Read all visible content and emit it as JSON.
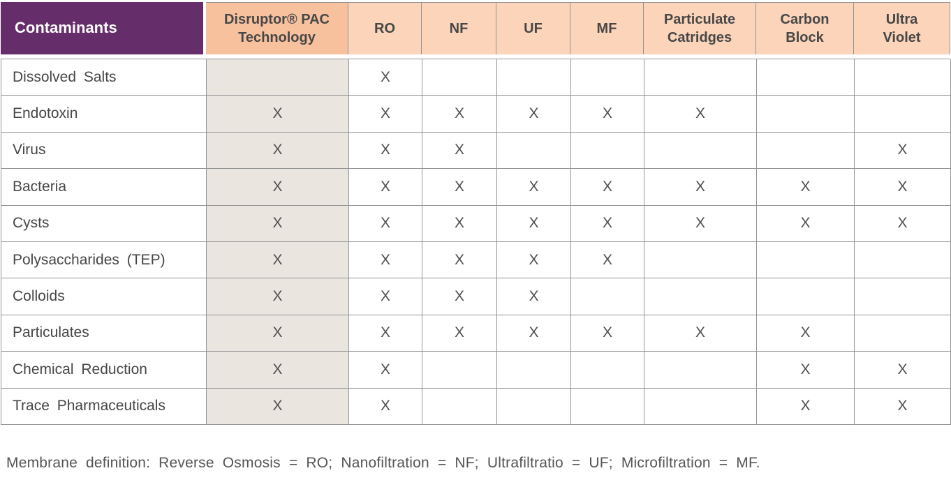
{
  "table": {
    "columns": [
      "Contaminants",
      "Disruptor® PAC Technology",
      "RO",
      "NF",
      "UF",
      "MF",
      "Particulate Catridges",
      "Carbon Block",
      "Ultra Violet"
    ],
    "rows": [
      {
        "label": "Dissolved Salts",
        "marks": [
          "",
          "X",
          "",
          "",
          "",
          "",
          "",
          ""
        ]
      },
      {
        "label": "Endotoxin",
        "marks": [
          "X",
          "X",
          "X",
          "X",
          "X",
          "X",
          "",
          ""
        ]
      },
      {
        "label": "Virus",
        "marks": [
          "X",
          "X",
          "X",
          "",
          "",
          "",
          "",
          "X"
        ]
      },
      {
        "label": "Bacteria",
        "marks": [
          "X",
          "X",
          "X",
          "X",
          "X",
          "X",
          "X",
          "X"
        ]
      },
      {
        "label": "Cysts",
        "marks": [
          "X",
          "X",
          "X",
          "X",
          "X",
          "X",
          "X",
          "X"
        ]
      },
      {
        "label": "Polysaccharides (TEP)",
        "marks": [
          "X",
          "X",
          "X",
          "X",
          "X",
          "",
          "",
          ""
        ]
      },
      {
        "label": "Colloids",
        "marks": [
          "X",
          "X",
          "X",
          "X",
          "",
          "",
          "",
          ""
        ]
      },
      {
        "label": "Particulates",
        "marks": [
          "X",
          "X",
          "X",
          "X",
          "X",
          "X",
          "X",
          ""
        ]
      },
      {
        "label": "Chemical Reduction",
        "marks": [
          "X",
          "X",
          "",
          "",
          "",
          "",
          "X",
          "X"
        ]
      },
      {
        "label": "Trace Pharmaceuticals",
        "marks": [
          "X",
          "X",
          "",
          "",
          "",
          "",
          "X",
          "X"
        ]
      }
    ]
  },
  "footnote": "Membrane definition: Reverse Osmosis = RO; Nanofiltration = NF; Ultrafiltratio = UF; Microfiltration = MF.",
  "colors": {
    "header_purple": "#662d6b",
    "header_peach_dark": "#f8c19e",
    "header_peach_light": "#fbd4ba",
    "disruptor_column_bg": "#ebe5e0",
    "grid_line": "#949494",
    "text": "#4a4a4a"
  }
}
